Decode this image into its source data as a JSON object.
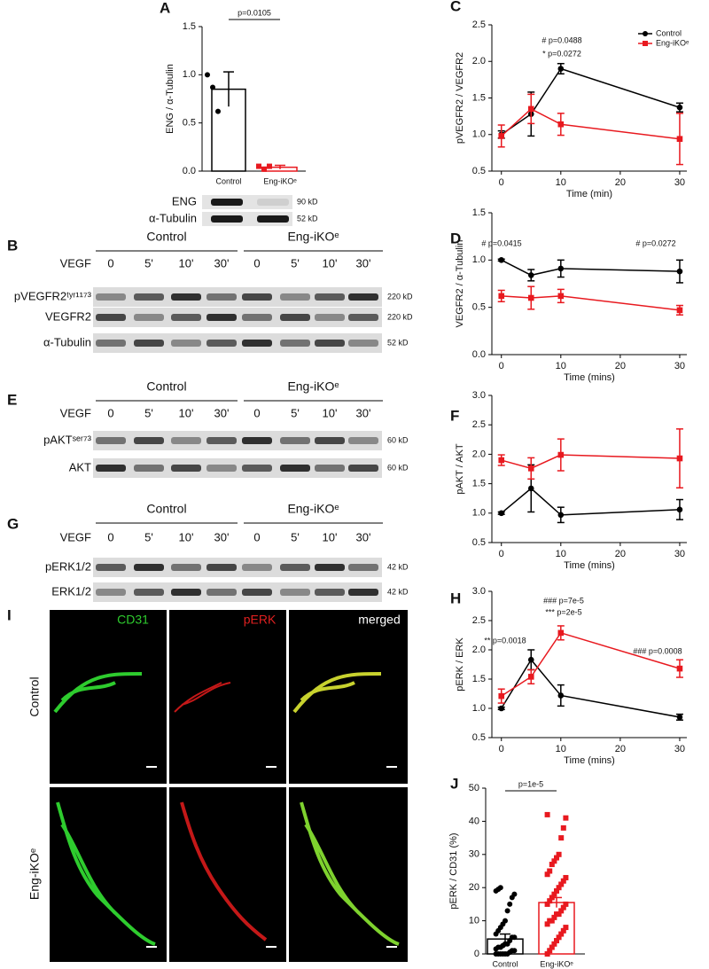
{
  "chart_data": [
    {
      "type": "bar",
      "panel": "A",
      "ylabel": "ENG / α-Tubulin",
      "categories": [
        "Control",
        "Eng-iKOᵉ"
      ],
      "values": [
        0.85,
        0.04
      ],
      "errors": [
        0.18,
        0.02
      ],
      "points": [
        [
          1.0,
          0.87,
          0.62
        ],
        [
          0.05,
          0.02,
          0.05
        ]
      ],
      "colors": [
        "#000000",
        "#e8191f"
      ],
      "markers": [
        "circle",
        "square"
      ],
      "ylim": [
        0,
        1.5
      ],
      "yticks": [
        {
          "value": 0,
          "label": "0.0"
        },
        0.5,
        {
          "value": 1,
          "label": "1.0"
        },
        1.5
      ],
      "annotation": "p=0.0105",
      "blot": [
        {
          "label": "ENG",
          "size": "90 kD"
        },
        {
          "label": "α-Tubulin",
          "size": "52 kD"
        }
      ]
    },
    {
      "type": "line",
      "panel": "C",
      "ylabel": "pVEGFR2 / VEGFR2",
      "xlabel": "Time (min)",
      "x": [
        0,
        5,
        10,
        30
      ],
      "series": [
        {
          "name": "Control",
          "color": "#000000",
          "marker": "circle",
          "values": [
            1.0,
            1.28,
            1.9,
            1.37
          ],
          "errors": [
            0.05,
            0.3,
            0.07,
            0.06
          ]
        },
        {
          "name": "Eng-iKOᵉ",
          "color": "#e8191f",
          "marker": "square",
          "values": [
            0.98,
            1.35,
            1.14,
            0.94
          ],
          "errors": [
            0.15,
            0.2,
            0.15,
            0.35
          ]
        }
      ],
      "xlim": [
        -1.6,
        31.2
      ],
      "xticks": [
        0,
        10,
        20,
        30
      ],
      "ylim": [
        0.5,
        2.5
      ],
      "yticks": [
        0.5,
        {
          "value": 1,
          "label": "1.0"
        },
        1.5,
        {
          "value": 2,
          "label": "2.0"
        },
        2.5
      ],
      "legend": "upper right",
      "annotations": [
        "# p=0.0488",
        "* p=0.0272"
      ]
    },
    {
      "type": "line",
      "panel": "D",
      "ylabel": "VEGFR2 / α-Tubulin",
      "xlabel": "Time (mins)",
      "x": [
        0,
        5,
        10,
        30
      ],
      "series": [
        {
          "color": "#000000",
          "marker": "circle",
          "values": [
            1.0,
            0.84,
            0.91,
            0.88
          ],
          "errors": [
            0.01,
            0.06,
            0.09,
            0.12
          ]
        },
        {
          "color": "#e8191f",
          "marker": "square",
          "values": [
            0.62,
            0.6,
            0.62,
            0.47
          ],
          "errors": [
            0.06,
            0.12,
            0.07,
            0.05
          ]
        }
      ],
      "xlim": [
        -1.6,
        31.2
      ],
      "xticks": [
        0,
        10,
        20,
        30
      ],
      "ylim": [
        0,
        1.5
      ],
      "yticks": [
        {
          "value": 0,
          "label": "0.0"
        },
        0.5,
        {
          "value": 1,
          "label": "1.0"
        },
        1.5
      ],
      "annotations": [
        "# p=0.0415",
        "# p=0.0272"
      ]
    },
    {
      "type": "line",
      "panel": "F",
      "ylabel": "pAKT / AKT",
      "xlabel": "Time (mins)",
      "x": [
        0,
        5,
        10,
        30
      ],
      "series": [
        {
          "color": "#000000",
          "marker": "circle",
          "values": [
            1.0,
            1.42,
            0.97,
            1.06
          ],
          "errors": [
            0.02,
            0.4,
            0.13,
            0.17
          ]
        },
        {
          "color": "#e8191f",
          "marker": "square",
          "values": [
            1.9,
            1.76,
            1.99,
            1.93
          ],
          "errors": [
            0.09,
            0.18,
            0.27,
            0.5
          ]
        }
      ],
      "xlim": [
        -1.6,
        31.2
      ],
      "xticks": [
        0,
        10,
        20,
        30
      ],
      "ylim": [
        0.5,
        3
      ],
      "yticks": [
        0.5,
        {
          "value": 1,
          "label": "1.0"
        },
        1.5,
        {
          "value": 2,
          "label": "2.0"
        },
        2.5,
        {
          "value": 3,
          "label": "3.0"
        }
      ],
      "annotations": []
    },
    {
      "type": "line",
      "panel": "H",
      "ylabel": "pERK / ERK",
      "xlabel": "Time (mins)",
      "x": [
        0,
        5,
        10,
        30
      ],
      "series": [
        {
          "color": "#000000",
          "marker": "circle",
          "values": [
            1.0,
            1.83,
            1.22,
            0.85
          ],
          "errors": [
            0.02,
            0.17,
            0.18,
            0.05
          ]
        },
        {
          "color": "#e8191f",
          "marker": "square",
          "values": [
            1.21,
            1.54,
            2.29,
            1.68
          ],
          "errors": [
            0.12,
            0.12,
            0.12,
            0.15
          ]
        }
      ],
      "xlim": [
        -1.6,
        31.2
      ],
      "xticks": [
        0,
        10,
        20,
        30
      ],
      "ylim": [
        0.5,
        3
      ],
      "yticks": [
        0.5,
        {
          "value": 1,
          "label": "1.0"
        },
        1.5,
        {
          "value": 2,
          "label": "2.0"
        },
        2.5,
        {
          "value": 3,
          "label": "3.0"
        }
      ],
      "annotations": [
        "### p=7e-5",
        "*** p=2e-5",
        "** p=0.0018",
        "### p=0.0008"
      ]
    },
    {
      "type": "bar",
      "panel": "J",
      "ylabel": "pERK / CD31 (%)",
      "categories": [
        "Control",
        "Eng-iKOᵉ"
      ],
      "values": [
        4.5,
        15.5
      ],
      "errors": [
        1.5,
        1.5
      ],
      "points": [
        [
          0,
          0,
          0,
          0,
          0,
          0,
          0.5,
          1,
          1,
          1.5,
          2,
          2,
          2.5,
          3,
          3,
          4,
          5,
          5,
          6,
          7,
          8,
          9,
          10,
          13,
          15,
          17,
          18,
          19,
          19.5,
          20
        ],
        [
          0,
          1,
          2,
          3,
          4,
          5,
          6,
          7,
          8,
          9,
          10,
          10,
          11,
          12,
          12,
          13,
          14,
          15,
          15,
          16,
          17,
          18,
          19,
          20,
          21,
          22,
          23,
          24,
          25,
          27,
          28,
          29,
          30,
          35,
          38,
          41,
          42
        ]
      ],
      "colors": [
        "#000000",
        "#e8191f"
      ],
      "markers": [
        "circle",
        "square"
      ],
      "ylim": [
        0,
        50
      ],
      "yticks": [
        0,
        10,
        20,
        30,
        40,
        50
      ],
      "annotation": "p=1e-5"
    }
  ],
  "blots": [
    {
      "panel": "B",
      "groups": [
        "Control",
        "Eng-iKOᵉ"
      ],
      "treatment": "VEGF",
      "lanes": [
        "0",
        "5'",
        "10'",
        "30'",
        "0",
        "5'",
        "10'",
        "30'"
      ],
      "rows": [
        {
          "label": "pVEGFR2ᵗʸʳ¹¹⁷³",
          "size": "220 kD"
        },
        {
          "label": "VEGFR2",
          "size": "220 kD"
        },
        {
          "label": "α-Tubulin",
          "size": "52 kD"
        }
      ]
    },
    {
      "panel": "E",
      "groups": [
        "Control",
        "Eng-iKOᵉ"
      ],
      "treatment": "VEGF",
      "lanes": [
        "0",
        "5'",
        "10'",
        "30'",
        "0",
        "5'",
        "10'",
        "30'"
      ],
      "rows": [
        {
          "label": "pAKTˢᵉʳ⁷³",
          "size": "60 kD"
        },
        {
          "label": "AKT",
          "size": "60 kD"
        }
      ]
    },
    {
      "panel": "G",
      "groups": [
        "Control",
        "Eng-iKOᵉ"
      ],
      "treatment": "VEGF",
      "lanes": [
        "0",
        "5'",
        "10'",
        "30'",
        "0",
        "5'",
        "10'",
        "30'"
      ],
      "rows": [
        {
          "label": "pERK1/2",
          "size": "42 kD"
        },
        {
          "label": "ERK1/2",
          "size": "42 kD"
        }
      ]
    }
  ],
  "images": {
    "panel": "I",
    "channels": [
      "CD31",
      "pERK",
      "merged"
    ],
    "conditions": [
      "Control",
      "Eng-iKOᵉ"
    ]
  }
}
